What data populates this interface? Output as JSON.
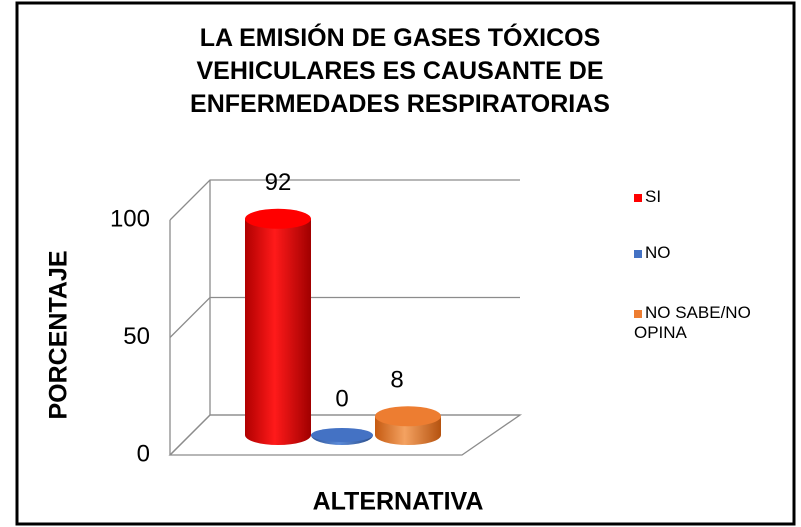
{
  "chart_data": {
    "type": "bar3d",
    "title": "LA EMISIÓN DE GASES TÓXICOS VEHICULARES ES CAUSANTE DE ENFERMEDADES RESPIRATORIAS",
    "categories": [
      "SI",
      "NO",
      "NO SABE/NO OPINA"
    ],
    "values": [
      92,
      0,
      8
    ],
    "colors": [
      "#ff0000",
      "#4472c4",
      "#ed7d31"
    ],
    "ylabel": "PORCENTAJE",
    "xlabel": "ALTERNATIVA",
    "ylim": [
      0,
      100
    ],
    "yticks": [
      0,
      50,
      100
    ],
    "grid": true,
    "legend": "right"
  }
}
